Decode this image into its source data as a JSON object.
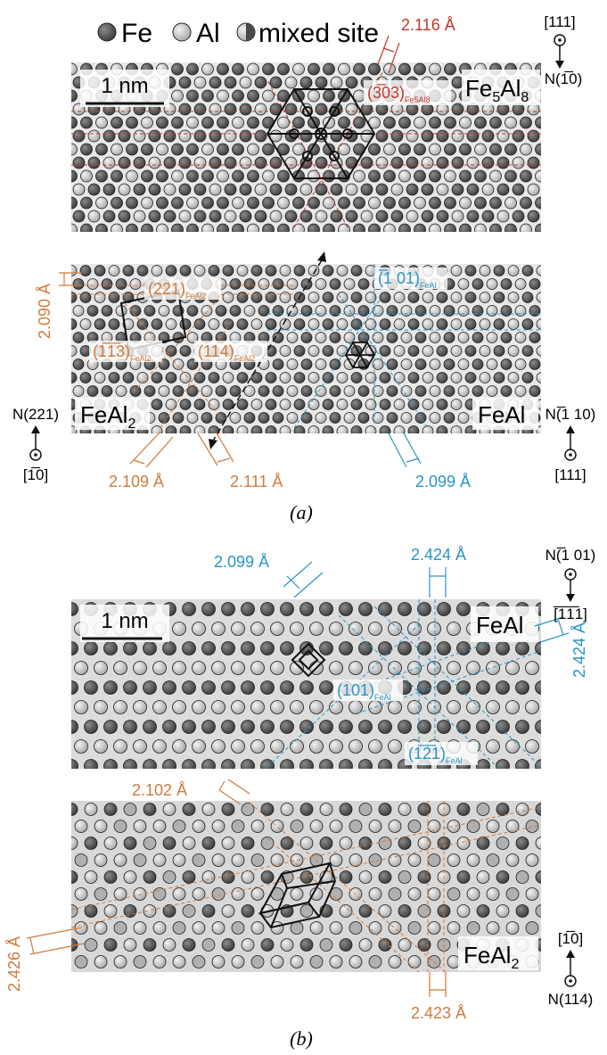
{
  "legend": {
    "fe": "Fe",
    "al": "Al",
    "mixed": "mixed site"
  },
  "panel_a": {
    "top": {
      "scale": "1 nm",
      "phase_main": "Fe",
      "phase_sub1": "5",
      "phase_mid": "Al",
      "phase_sub2": "8",
      "plane_main": "(3̅03)",
      "plane_sub": "Fe5Al8",
      "spacing": "2.116 Å",
      "dir_top": "[111]",
      "dir_side": "N(1̅0)"
    },
    "bottom": {
      "phase_left_main": "FeAl",
      "phase_left_sub": "2",
      "phase_right": "FeAl",
      "plane_221": "(221)",
      "plane_221_sub": "FeAl2",
      "plane_113": "(1̅1̅3)",
      "plane_113_sub": "FeAl2",
      "plane_114": "(114)",
      "plane_114_sub": "FeAl2",
      "plane_101": "(̅1 01)",
      "plane_101_sub": "FeAl",
      "spacing_left_vert": "2.090 Å",
      "spacing_1": "2.109 Å",
      "spacing_2": "2.111 Å",
      "spacing_3": "2.099 Å",
      "left_dir_N": "N(221)",
      "left_dir_v": "[1̅0]",
      "right_dir_N": "N(̅1 10)",
      "right_dir_v": "[111]"
    },
    "caption": "(a)"
  },
  "panel_b": {
    "top": {
      "scale": "1 nm",
      "phase": "FeAl",
      "spacing_1": "2.099 Å",
      "spacing_2": "2.424 Å",
      "spacing_3": "2.424 Å",
      "plane_101": "(101)",
      "plane_101_sub": "FeAl",
      "plane_121": "(1̅2̅1)",
      "plane_121_sub": "FeAl",
      "dir_N": "N(̅1 01)",
      "dir_v": "[̅1̅1̅1]"
    },
    "bottom": {
      "phase_main": "FeAl",
      "phase_sub": "2",
      "spacing_1": "2.102 Å",
      "spacing_2": "2.426 Å",
      "spacing_3": "2.423 Å",
      "dir_v": "[1̅0]",
      "dir_N": "N(114)"
    },
    "caption": "(b)"
  },
  "colors": {
    "fe": "#4a4a4a",
    "al": "#c8c8c8",
    "red": "#c0392b",
    "orange": "#d07a3a",
    "blue": "#2a95c4"
  }
}
